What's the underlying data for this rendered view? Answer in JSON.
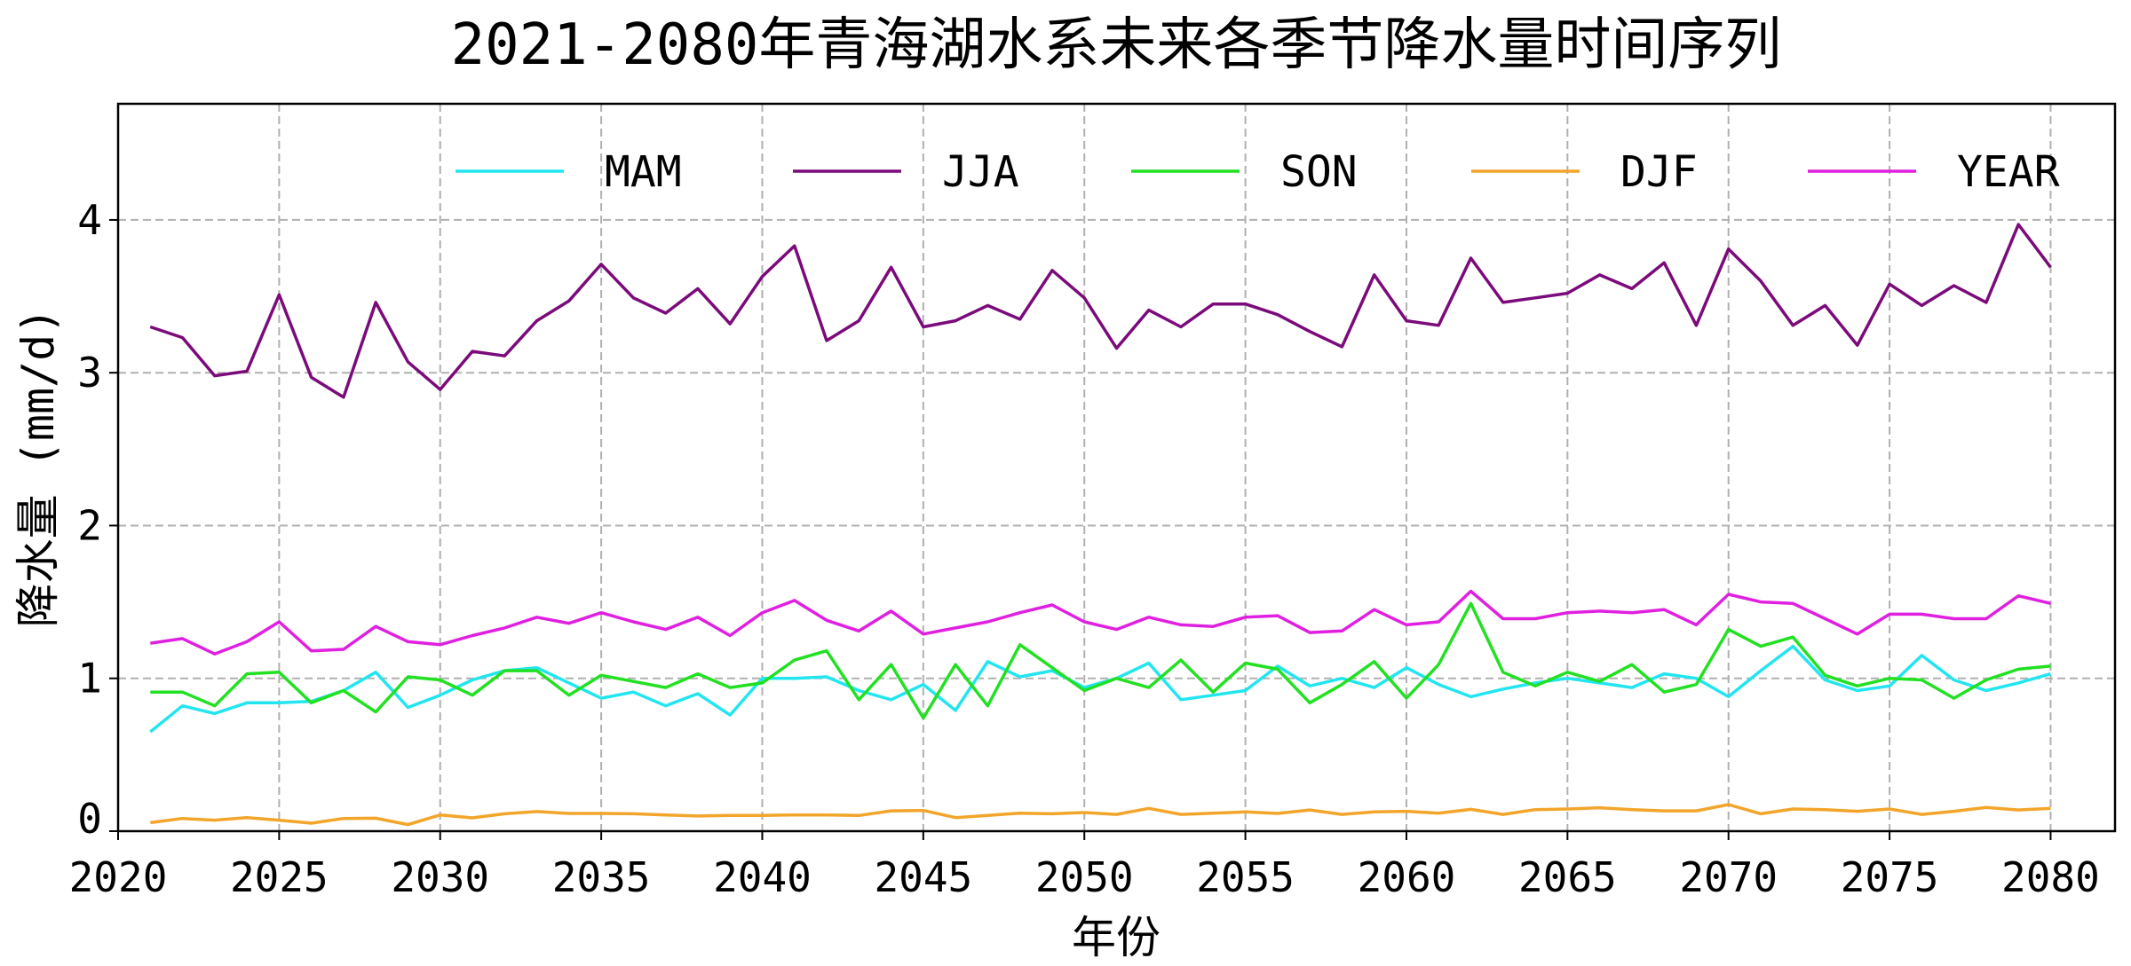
{
  "chart_data": {
    "type": "line",
    "title": "2021-2080年青海湖水系未来各季节降水量时间序列",
    "xlabel": "年份",
    "ylabel": "降水量 (mm/d)",
    "xlim": [
      2020,
      2082
    ],
    "ylim": [
      0,
      4.76
    ],
    "xticks": [
      2020,
      2025,
      2030,
      2035,
      2040,
      2045,
      2050,
      2055,
      2060,
      2065,
      2070,
      2075,
      2080
    ],
    "yticks": [
      0,
      1,
      2,
      3,
      4
    ],
    "grid": true,
    "legend_position": "top",
    "x_start": 2021,
    "series": [
      {
        "name": "MAM",
        "color": "#22E5F0",
        "values": [
          0.65,
          0.82,
          0.77,
          0.84,
          0.84,
          0.85,
          0.92,
          1.04,
          0.81,
          0.89,
          0.99,
          1.05,
          1.07,
          0.97,
          0.87,
          0.91,
          0.82,
          0.9,
          0.76,
          1.0,
          1.0,
          1.01,
          0.92,
          0.86,
          0.96,
          0.79,
          1.11,
          1.01,
          1.05,
          0.94,
          1.0,
          1.1,
          0.86,
          0.89,
          0.92,
          1.08,
          0.95,
          1.0,
          0.94,
          1.07,
          0.96,
          0.88,
          0.93,
          0.97,
          1.0,
          0.97,
          0.94,
          1.03,
          1.0,
          0.88,
          1.05,
          1.21,
          0.99,
          0.92,
          0.95,
          1.15,
          0.99,
          0.92,
          0.97,
          1.03
        ]
      },
      {
        "name": "JJA",
        "color": "#7B0A7B",
        "values": [
          3.3,
          3.23,
          2.98,
          3.01,
          3.51,
          2.97,
          2.84,
          3.46,
          3.07,
          2.89,
          3.14,
          3.11,
          3.34,
          3.47,
          3.71,
          3.49,
          3.39,
          3.55,
          3.32,
          3.63,
          3.83,
          3.21,
          3.34,
          3.69,
          3.3,
          3.34,
          3.44,
          3.35,
          3.67,
          3.49,
          3.16,
          3.41,
          3.3,
          3.45,
          3.45,
          3.38,
          3.27,
          3.17,
          3.64,
          3.34,
          3.31,
          3.75,
          3.46,
          3.49,
          3.52,
          3.64,
          3.55,
          3.72,
          3.31,
          3.81,
          3.6,
          3.31,
          3.44,
          3.18,
          3.58,
          3.44,
          3.57,
          3.46,
          3.97,
          3.69
        ]
      },
      {
        "name": "SON",
        "color": "#22E022",
        "values": [
          0.91,
          0.91,
          0.82,
          1.03,
          1.04,
          0.84,
          0.92,
          0.78,
          1.01,
          0.99,
          0.89,
          1.05,
          1.05,
          0.89,
          1.02,
          0.98,
          0.94,
          1.03,
          0.94,
          0.97,
          1.12,
          1.18,
          0.86,
          1.09,
          0.74,
          1.09,
          0.82,
          1.22,
          1.07,
          0.92,
          1.0,
          0.94,
          1.12,
          0.91,
          1.1,
          1.06,
          0.84,
          0.96,
          1.11,
          0.87,
          1.09,
          1.49,
          1.04,
          0.95,
          1.04,
          0.98,
          1.09,
          0.91,
          0.96,
          1.32,
          1.21,
          1.27,
          1.02,
          0.95,
          1.0,
          0.99,
          0.87,
          0.99,
          1.06,
          1.08
        ]
      },
      {
        "name": "DJF",
        "color": "#F2A52A",
        "values": [
          0.056,
          0.083,
          0.072,
          0.089,
          0.072,
          0.052,
          0.083,
          0.085,
          0.043,
          0.106,
          0.087,
          0.114,
          0.128,
          0.116,
          0.116,
          0.114,
          0.106,
          0.099,
          0.103,
          0.103,
          0.106,
          0.106,
          0.103,
          0.133,
          0.135,
          0.089,
          0.103,
          0.118,
          0.114,
          0.122,
          0.11,
          0.149,
          0.11,
          0.118,
          0.126,
          0.116,
          0.139,
          0.11,
          0.126,
          0.13,
          0.118,
          0.143,
          0.11,
          0.141,
          0.145,
          0.153,
          0.141,
          0.133,
          0.133,
          0.174,
          0.114,
          0.145,
          0.141,
          0.13,
          0.145,
          0.11,
          0.13,
          0.155,
          0.139,
          0.149
        ]
      },
      {
        "name": "YEAR",
        "color": "#E020E0",
        "values": [
          1.23,
          1.26,
          1.16,
          1.24,
          1.37,
          1.18,
          1.19,
          1.34,
          1.24,
          1.22,
          1.28,
          1.33,
          1.4,
          1.36,
          1.43,
          1.37,
          1.32,
          1.4,
          1.28,
          1.43,
          1.51,
          1.38,
          1.31,
          1.44,
          1.29,
          1.33,
          1.37,
          1.43,
          1.48,
          1.37,
          1.32,
          1.4,
          1.35,
          1.34,
          1.4,
          1.41,
          1.3,
          1.31,
          1.45,
          1.35,
          1.37,
          1.57,
          1.39,
          1.39,
          1.43,
          1.44,
          1.43,
          1.45,
          1.35,
          1.55,
          1.5,
          1.49,
          1.39,
          1.29,
          1.42,
          1.42,
          1.39,
          1.39,
          1.54,
          1.49
        ]
      }
    ]
  }
}
